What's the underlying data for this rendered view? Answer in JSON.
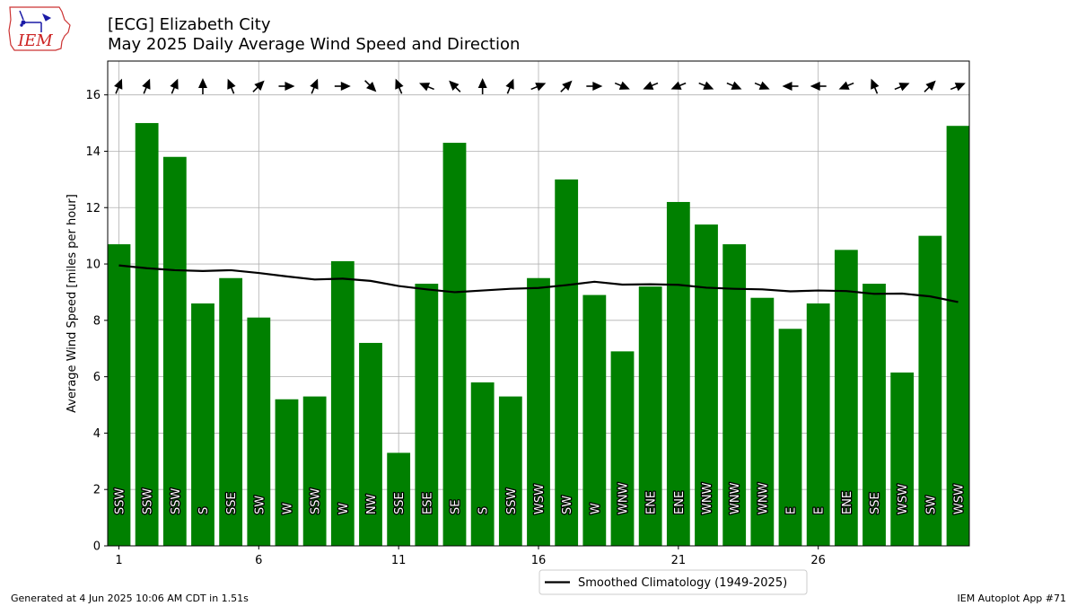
{
  "title": {
    "line1": "[ECG] Elizabeth City",
    "line2": "May 2025 Daily Average Wind Speed and Direction"
  },
  "logo_text": "IEM",
  "footer": {
    "generated": "Generated at 4 Jun 2025 10:06 AM CDT in 1.51s",
    "app": "IEM Autoplot App #71"
  },
  "colors": {
    "bar": "#008000",
    "line": "#000000",
    "grid": "#b0b0b0",
    "logo": "#cc2222",
    "logo_outline": "#cc3333",
    "logo_icon": "#1a1aa6"
  },
  "chart_data": {
    "type": "bar",
    "title": "[ECG] Elizabeth City\nMay 2025 Daily Average Wind Speed and Direction",
    "ylabel": "Average Wind Speed [miles per hour]",
    "xlabel": "",
    "ylim": [
      0,
      17.2
    ],
    "yticks": [
      0,
      2,
      4,
      6,
      8,
      10,
      12,
      14,
      16
    ],
    "xticks": [
      1,
      6,
      11,
      16,
      21,
      26
    ],
    "grid": true,
    "legend_position": "bottom-center",
    "days": [
      1,
      2,
      3,
      4,
      5,
      6,
      7,
      8,
      9,
      10,
      11,
      12,
      13,
      14,
      15,
      16,
      17,
      18,
      19,
      20,
      21,
      22,
      23,
      24,
      25,
      26,
      27,
      28,
      29,
      30,
      31
    ],
    "values": [
      10.7,
      15.0,
      13.8,
      8.6,
      9.5,
      8.1,
      5.2,
      5.3,
      10.1,
      7.2,
      3.3,
      9.3,
      14.3,
      5.8,
      5.3,
      9.5,
      13.0,
      8.9,
      6.9,
      9.2,
      12.2,
      11.4,
      10.7,
      8.8,
      7.7,
      8.6,
      10.5,
      9.3,
      6.15,
      11.0,
      14.9
    ],
    "directions": [
      "SSW",
      "SSW",
      "SSW",
      "S",
      "SSE",
      "SW",
      "W",
      "SSW",
      "W",
      "NW",
      "SSE",
      "ESE",
      "SE",
      "S",
      "SSW",
      "WSW",
      "SW",
      "W",
      "WNW",
      "ENE",
      "ENE",
      "WNW",
      "WNW",
      "WNW",
      "E",
      "E",
      "ENE",
      "SSE",
      "WSW",
      "SW",
      "WSW"
    ],
    "series": [
      {
        "name": "Smoothed Climatology (1949-2025)",
        "values": [
          9.95,
          9.85,
          9.78,
          9.75,
          9.78,
          9.68,
          9.56,
          9.45,
          9.48,
          9.4,
          9.22,
          9.1,
          9.0,
          9.06,
          9.12,
          9.15,
          9.25,
          9.37,
          9.27,
          9.28,
          9.26,
          9.16,
          9.12,
          9.1,
          9.03,
          9.06,
          9.04,
          8.94,
          8.95,
          8.85,
          8.65
        ]
      }
    ]
  }
}
